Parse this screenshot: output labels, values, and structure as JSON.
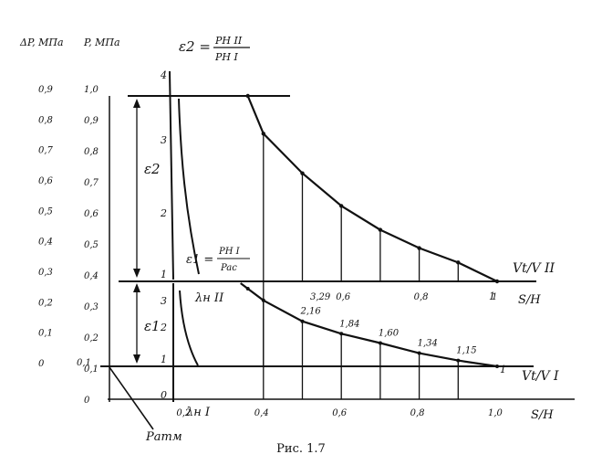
{
  "caption": "Рис. 1.7",
  "chart_data": {
    "type": "line",
    "axes": {
      "dp_label": "ΔP, МПа",
      "p_label": "P, МПа",
      "dp_ticks": [
        "0,9",
        "0,8",
        "0,7",
        "0,6",
        "0,5",
        "0,4",
        "0,3",
        "0,2",
        "0,1",
        "0"
      ],
      "p_ticks": [
        "1,0",
        "0,9",
        "0,8",
        "0,7",
        "0,6",
        "0,5",
        "0,4",
        "0,3",
        "0,2",
        "0,1",
        "0"
      ],
      "p_extra_label": "0,1",
      "upper_eps_ticks": [
        "4",
        "3",
        "2",
        "1"
      ],
      "lower_eps_ticks": [
        "3",
        "2",
        "1",
        "0"
      ],
      "lower_x_ticks": [
        "0,2",
        "0,4",
        "0,6",
        "0,8",
        "1,0"
      ],
      "upper_x_ticks": [
        "0,6",
        "0,8",
        "1"
      ],
      "upper_x_label": "S/H",
      "lower_x_label": "S/H",
      "upper_v_label": "Vt/V II",
      "lower_v_label": "Vt/V I"
    },
    "labels": {
      "eps2_header_lhs": "ε2 =",
      "eps2_header_num": "PH II",
      "eps2_header_den": "PH I",
      "eps1_lhs": "ε1 =",
      "eps1_num": "PH I",
      "eps1_den": "Pac",
      "eps2_bracket": "ε2",
      "eps1_bracket": "ε1",
      "lambda_upper": "λн II",
      "lambda_lower": "λн I",
      "p_atm": "Pатм",
      "upper_end": "1",
      "lower_end": "1"
    },
    "upper_curve": {
      "name": "ε2",
      "points": [
        [
          0.36,
          3.95
        ],
        [
          0.4,
          3.35
        ],
        [
          0.5,
          2.72
        ],
        [
          0.6,
          2.2
        ],
        [
          0.7,
          1.82
        ],
        [
          0.8,
          1.53
        ],
        [
          0.9,
          1.3
        ],
        [
          1.0,
          1.0
        ]
      ]
    },
    "lower_curve": {
      "name": "ε1",
      "points": [
        [
          0.36,
          3.0
        ],
        [
          0.4,
          2.7
        ],
        [
          0.5,
          2.16
        ],
        [
          0.6,
          1.84
        ],
        [
          0.7,
          1.6
        ],
        [
          0.8,
          1.34
        ],
        [
          0.9,
          1.15
        ],
        [
          1.0,
          1.0
        ]
      ]
    },
    "lower_point_labels": [
      "2,16",
      "1,84",
      "1,60",
      "1,34",
      "1,15"
    ],
    "upper_point_label": "3,29"
  }
}
